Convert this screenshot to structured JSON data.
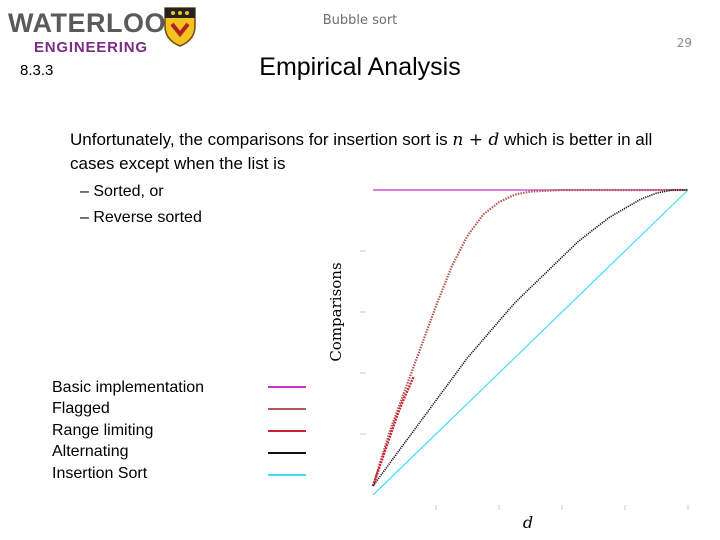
{
  "header": {
    "logo_main": "WATERLOO",
    "logo_sub": "ENGINEERING",
    "topic": "Bubble sort",
    "page_number": "29"
  },
  "slide": {
    "section": "8.3.3",
    "title": "Empirical Analysis",
    "bullet_part1": "Unfortunately, the comparisons for insertion sort is ",
    "bullet_math": "n + d",
    "bullet_part2": " which is better in all cases except when the list is",
    "sub_bullets": [
      "– Sorted, or",
      "– Reverse sorted"
    ]
  },
  "colors": {
    "basic": "#cc33cc",
    "flagged": "#b05a55",
    "range": "#cc2233",
    "alternating": "#111111",
    "insertion": "#44ddee"
  },
  "chart_data": {
    "type": "scatter",
    "xlabel": "d",
    "ylabel": "Comparisons",
    "xlim": [
      0,
      1
    ],
    "ylim": [
      0,
      1
    ],
    "series": [
      {
        "name": "Basic implementation",
        "color": "#cc33cc",
        "x": [
          0,
          1
        ],
        "y": [
          1,
          1
        ]
      },
      {
        "name": "Flagged",
        "color": "#b05a55",
        "x": [
          0,
          0.05,
          0.1,
          0.15,
          0.2,
          0.25,
          0.3,
          0.35,
          0.4,
          0.45,
          0.5,
          0.6,
          0.7,
          0.8,
          0.9,
          1.0
        ],
        "y": [
          0.03,
          0.2,
          0.34,
          0.48,
          0.62,
          0.75,
          0.85,
          0.92,
          0.96,
          0.985,
          0.995,
          1,
          1,
          1,
          1,
          1
        ]
      },
      {
        "name": "Range limiting",
        "color": "#cc2233",
        "x": [
          0,
          0.02,
          0.04,
          0.06,
          0.08,
          0.1,
          0.13
        ],
        "y": [
          0.03,
          0.09,
          0.15,
          0.21,
          0.27,
          0.32,
          0.39
        ]
      },
      {
        "name": "Alternating",
        "color": "#111111",
        "x": [
          0,
          0.05,
          0.1,
          0.15,
          0.2,
          0.25,
          0.3,
          0.35,
          0.4,
          0.45,
          0.5,
          0.55,
          0.6,
          0.65,
          0.7,
          0.75,
          0.8,
          0.85,
          0.9,
          0.95,
          1.0
        ],
        "y": [
          0.03,
          0.1,
          0.17,
          0.24,
          0.31,
          0.38,
          0.45,
          0.51,
          0.57,
          0.63,
          0.68,
          0.73,
          0.78,
          0.83,
          0.87,
          0.91,
          0.94,
          0.97,
          0.99,
          1.0,
          1.0
        ]
      },
      {
        "name": "Insertion Sort",
        "color": "#44ddee",
        "x": [
          0,
          1
        ],
        "y": [
          0,
          1
        ]
      }
    ],
    "legend": "bottom-left"
  }
}
